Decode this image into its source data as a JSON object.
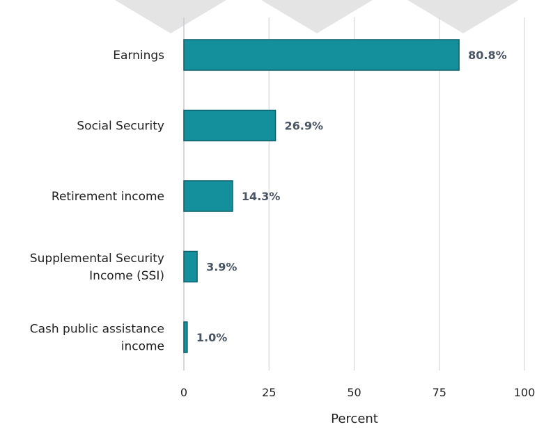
{
  "chart_data": {
    "type": "bar",
    "orientation": "horizontal",
    "categories": [
      [
        "Earnings"
      ],
      [
        "Social Security"
      ],
      [
        "Retirement income"
      ],
      [
        "Supplemental Security",
        "Income (SSI)"
      ],
      [
        "Cash public assistance",
        "income"
      ]
    ],
    "values": [
      80.8,
      26.9,
      14.3,
      3.9,
      1.0
    ],
    "data_labels": [
      "80.8%",
      "26.9%",
      "14.3%",
      "3.9%",
      "1.0%"
    ],
    "xlabel": "Percent",
    "xlim": [
      0,
      100
    ],
    "xticks": [
      0,
      25,
      50,
      75,
      100
    ],
    "grid": true,
    "colors": {
      "bar_fill": "#14909d",
      "bar_stroke": "#0f5f6c",
      "grid": "#d5d8dc",
      "axis": "#c7ccd1",
      "data_label": "#4a5563",
      "text": "#1f1f1f",
      "banner_shape": "#e4e4e4"
    }
  }
}
